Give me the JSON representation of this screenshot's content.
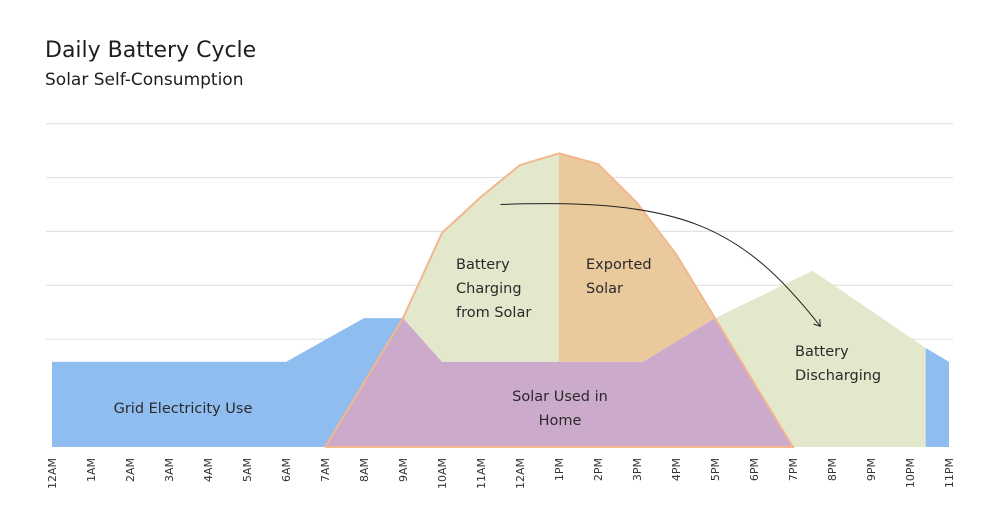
{
  "chart_data": {
    "type": "area",
    "title": "Daily Battery Cycle",
    "subtitle": "Solar Self-Consumption",
    "xlabel": "",
    "ylabel": "",
    "tick_labels": [
      "12AM",
      "1AM",
      "2AM",
      "3AM",
      "4AM",
      "5AM",
      "6AM",
      "7AM",
      "8AM",
      "9AM",
      "10AM",
      "11AM",
      "12AM",
      "1PM",
      "2PM",
      "3PM",
      "4PM",
      "5PM",
      "6PM",
      "7PM",
      "8PM",
      "9PM",
      "10PM",
      "11PM"
    ],
    "xlim": [
      0,
      23
    ],
    "ylim": [
      0,
      6
    ],
    "grid": true,
    "gridlines_y": [
      2,
      3,
      4,
      5,
      6
    ],
    "areas": [
      {
        "name": "Grid Electricity Use",
        "label": "Grid Electricity Use",
        "color": "#8fbdf0",
        "points": [
          [
            0,
            0
          ],
          [
            0,
            1.58
          ],
          [
            6,
            1.58
          ],
          [
            8,
            2.39
          ],
          [
            9,
            2.39
          ],
          [
            7,
            0
          ]
        ]
      },
      {
        "name": "Grid Electricity Use (evening)",
        "label": "",
        "color": "#8fbdf0",
        "points": [
          [
            22.4,
            0
          ],
          [
            22.4,
            1.84
          ],
          [
            23,
            1.58
          ],
          [
            23,
            0
          ]
        ]
      },
      {
        "name": "Battery Discharging",
        "label": "Battery Discharging",
        "color": "#e3e8cc",
        "points": [
          [
            17,
            2.39
          ],
          [
            19.5,
            3.27
          ],
          [
            22.4,
            1.84
          ],
          [
            22.4,
            0
          ],
          [
            19,
            0
          ]
        ]
      },
      {
        "name": "Battery Charging from Solar",
        "label": "Battery Charging from Solar",
        "color": "#e3e8cc",
        "points": [
          [
            9,
            2.39
          ],
          [
            10,
            3.97
          ],
          [
            11,
            4.64
          ],
          [
            12,
            5.23
          ],
          [
            13,
            5.45
          ],
          [
            13,
            1.58
          ],
          [
            10,
            1.58
          ]
        ]
      },
      {
        "name": "Exported Solar",
        "label": "Exported Solar",
        "color": "#eac99c",
        "points": [
          [
            13,
            5.45
          ],
          [
            14,
            5.25
          ],
          [
            15,
            4.53
          ],
          [
            16,
            3.58
          ],
          [
            17,
            2.39
          ],
          [
            15.15,
            1.58
          ],
          [
            13,
            1.58
          ]
        ]
      },
      {
        "name": "Solar Used in Home",
        "label": "Solar Used in Home",
        "color": "#cbaacb",
        "points": [
          [
            7,
            0
          ],
          [
            9,
            2.39
          ],
          [
            10,
            1.58
          ],
          [
            15.15,
            1.58
          ],
          [
            17,
            2.39
          ],
          [
            18,
            1.19
          ],
          [
            19,
            0
          ]
        ]
      }
    ],
    "solar_outline": {
      "color": "#f3b78f",
      "points": [
        [
          7,
          0
        ],
        [
          9,
          2.39
        ],
        [
          10,
          3.97
        ],
        [
          11,
          4.64
        ],
        [
          12,
          5.23
        ],
        [
          13,
          5.45
        ],
        [
          14,
          5.25
        ],
        [
          15,
          4.53
        ],
        [
          16,
          3.58
        ],
        [
          17,
          2.39
        ],
        [
          18,
          1.19
        ],
        [
          19,
          0
        ],
        [
          7,
          0
        ]
      ]
    },
    "annotation_arrow": {
      "from": [
        11.5,
        4.5
      ],
      "to": [
        19.7,
        2.24
      ],
      "color": "#222222"
    }
  }
}
